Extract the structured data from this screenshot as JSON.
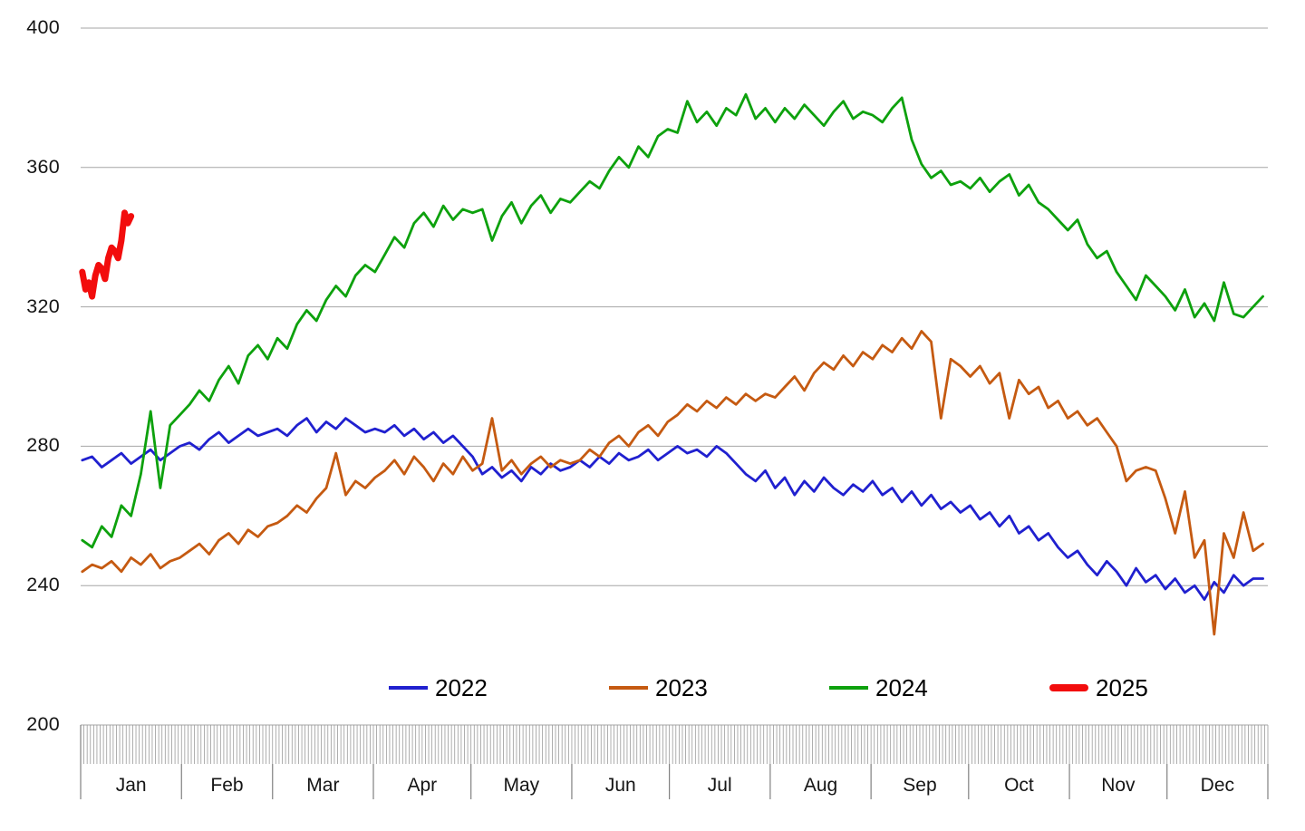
{
  "chart_data": {
    "type": "line",
    "title": "",
    "x_axis": {
      "unit": "day-of-year",
      "months": [
        "Jan",
        "Feb",
        "Mar",
        "Apr",
        "May",
        "Jun",
        "Jul",
        "Aug",
        "Sep",
        "Oct",
        "Nov",
        "Dec"
      ],
      "month_days": [
        31,
        28,
        31,
        30,
        31,
        30,
        31,
        31,
        30,
        31,
        30,
        31
      ],
      "days_in_year": 365
    },
    "y_axis": {
      "min": 200,
      "max": 400,
      "ticks": [
        200,
        240,
        280,
        320,
        360,
        400
      ],
      "tick_labels": [
        "200",
        "240",
        "280",
        "320",
        "360",
        "400"
      ]
    },
    "grid": true,
    "legend": {
      "position": "bottom",
      "items": [
        "2022",
        "2023",
        "2024",
        "2025"
      ]
    },
    "series": [
      {
        "name": "2022",
        "color": "#2020CF",
        "stroke_width": 2.8,
        "start_day": 1,
        "step_days": 3,
        "values": [
          276,
          277,
          274,
          276,
          278,
          275,
          277,
          279,
          276,
          278,
          280,
          281,
          279,
          282,
          284,
          281,
          283,
          285,
          283,
          284,
          285,
          283,
          286,
          288,
          284,
          287,
          285,
          288,
          286,
          284,
          285,
          284,
          286,
          283,
          285,
          282,
          284,
          281,
          283,
          280,
          277,
          272,
          274,
          271,
          273,
          270,
          274,
          272,
          275,
          273,
          274,
          276,
          274,
          277,
          275,
          278,
          276,
          277,
          279,
          276,
          278,
          280,
          278,
          279,
          277,
          280,
          278,
          275,
          272,
          270,
          273,
          268,
          271,
          266,
          270,
          267,
          271,
          268,
          266,
          269,
          267,
          270,
          266,
          268,
          264,
          267,
          263,
          266,
          262,
          264,
          261,
          263,
          259,
          261,
          257,
          260,
          255,
          257,
          253,
          255,
          251,
          248,
          250,
          246,
          243,
          247,
          244,
          240,
          245,
          241,
          243,
          239,
          242,
          238,
          240,
          236,
          241,
          238,
          243,
          240,
          242,
          242
        ]
      },
      {
        "name": "2023",
        "color": "#C55A11",
        "stroke_width": 2.8,
        "start_day": 1,
        "step_days": 3,
        "values": [
          244,
          246,
          245,
          247,
          244,
          248,
          246,
          249,
          245,
          247,
          248,
          250,
          252,
          249,
          253,
          255,
          252,
          256,
          254,
          257,
          258,
          260,
          263,
          261,
          265,
          268,
          278,
          266,
          270,
          268,
          271,
          273,
          276,
          272,
          277,
          274,
          270,
          275,
          272,
          277,
          273,
          275,
          288,
          273,
          276,
          272,
          275,
          277,
          274,
          276,
          275,
          276,
          279,
          277,
          281,
          283,
          280,
          284,
          286,
          283,
          287,
          289,
          292,
          290,
          293,
          291,
          294,
          292,
          295,
          293,
          295,
          294,
          297,
          300,
          296,
          301,
          304,
          302,
          306,
          303,
          307,
          305,
          309,
          307,
          311,
          308,
          313,
          310,
          288,
          305,
          303,
          300,
          303,
          298,
          301,
          288,
          299,
          295,
          297,
          291,
          293,
          288,
          290,
          286,
          288,
          284,
          280,
          270,
          273,
          274,
          273,
          265,
          255,
          267,
          248,
          253,
          226,
          255,
          248,
          261,
          250,
          252
        ]
      },
      {
        "name": "2024",
        "color": "#0DA10D",
        "stroke_width": 2.8,
        "start_day": 1,
        "step_days": 3,
        "values": [
          253,
          251,
          257,
          254,
          263,
          260,
          272,
          290,
          268,
          286,
          289,
          292,
          296,
          293,
          299,
          303,
          298,
          306,
          309,
          305,
          311,
          308,
          315,
          319,
          316,
          322,
          326,
          323,
          329,
          332,
          330,
          335,
          340,
          337,
          344,
          347,
          343,
          349,
          345,
          348,
          347,
          348,
          339,
          346,
          350,
          344,
          349,
          352,
          347,
          351,
          350,
          353,
          356,
          354,
          359,
          363,
          360,
          366,
          363,
          369,
          371,
          370,
          379,
          373,
          376,
          372,
          377,
          375,
          381,
          374,
          377,
          373,
          377,
          374,
          378,
          375,
          372,
          376,
          379,
          374,
          376,
          375,
          373,
          377,
          380,
          368,
          361,
          357,
          359,
          355,
          356,
          354,
          357,
          353,
          356,
          358,
          352,
          355,
          350,
          348,
          345,
          342,
          345,
          338,
          334,
          336,
          330,
          326,
          322,
          329,
          326,
          323,
          319,
          325,
          317,
          321,
          316,
          327,
          318,
          317,
          320,
          323
        ]
      },
      {
        "name": "2025",
        "color": "#F20D0D",
        "stroke_width": 7,
        "start_day": 1,
        "step_days": 1,
        "values": [
          330,
          325,
          327,
          323,
          329,
          332,
          331,
          328,
          334,
          337,
          336,
          334,
          339,
          347,
          344,
          346
        ]
      }
    ],
    "style": {
      "gridline_color": "#A6A6A6",
      "day_tick_color": "#9A9A9A",
      "month_separator_color": "#808080",
      "axis_text_color": "#151515"
    }
  }
}
